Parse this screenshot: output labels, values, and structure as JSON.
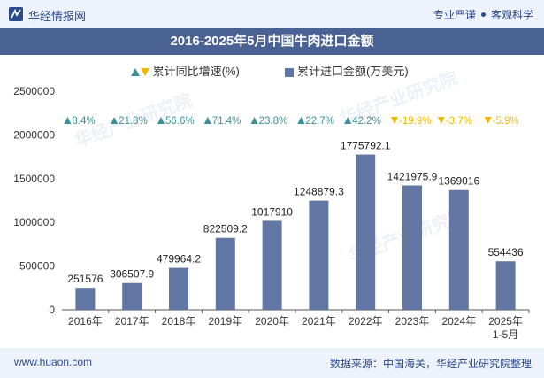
{
  "header": {
    "brand": "华经情报网",
    "tag1": "专业严谨",
    "tag2": "客观科学"
  },
  "title": "2016-2025年5月中国牛肉进口金额",
  "legend": {
    "growth_label": "累计同比增速(%)",
    "amount_label": "累计进口金额(万美元)"
  },
  "footer": {
    "site": "www.huaon.com",
    "source": "数据来源：中国海关，华经产业研究院整理"
  },
  "watermark": {
    "text": "华经产业研究院",
    "url": "www.huaon.com"
  },
  "colors": {
    "bar": "#6176a3",
    "up": "#3d8f97",
    "down": "#f4b800",
    "title_bg": "#4a6194",
    "band_bg": "#eef3fb"
  },
  "chart_data": {
    "type": "bar",
    "categories": [
      "2016年",
      "2017年",
      "2018年",
      "2019年",
      "2020年",
      "2021年",
      "2022年",
      "2023年",
      "2024年",
      "2025年\n1-5月"
    ],
    "series": [
      {
        "name": "累计进口金额(万美元)",
        "values": [
          251576,
          306507.9,
          479964.2,
          822509.2,
          1017910,
          1248879.3,
          1775792.1,
          1421975.9,
          1369016,
          554436
        ]
      },
      {
        "name": "累计同比增速(%)",
        "values": [
          8.4,
          21.8,
          56.6,
          71.4,
          23.8,
          22.7,
          42.2,
          -19.9,
          -3.7,
          -5.9
        ]
      }
    ],
    "value_labels": [
      "251576",
      "306507.9",
      "479964.2",
      "822509.2",
      "1017910",
      "1248879.3",
      "1775792.1",
      "1421975.9",
      "1369016",
      "554436"
    ],
    "growth_labels": [
      "8.4%",
      "21.8%",
      "56.6%",
      "71.4%",
      "23.8%",
      "22.7%",
      "42.2%",
      "-19.9%",
      "-3.7%",
      "-5.9%"
    ],
    "yticks": [
      "0",
      "500000",
      "1000000",
      "1500000",
      "2000000",
      "2500000"
    ],
    "ylim": [
      0,
      2500000
    ],
    "legend_position": "top-center",
    "grid": false
  }
}
